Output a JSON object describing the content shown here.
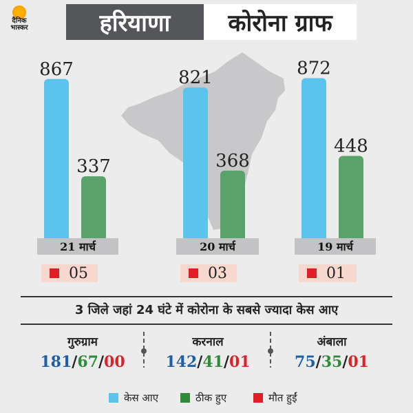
{
  "header": {
    "logo_text_1": "दैनिक",
    "logo_text_2": "भास्कर",
    "title_left": "हरियाणा",
    "title_right": "कोरोना ग्राफ"
  },
  "colors": {
    "cases": "#5bc4ec",
    "recovered": "#5aa26c",
    "deaths": "#e01e25",
    "map": "#c8c8ca"
  },
  "chart_data": {
    "type": "bar",
    "title": "",
    "categories": [
      "21 मार्च",
      "20 मार्च",
      "19 मार्च"
    ],
    "series": [
      {
        "name": "केस आए",
        "values": [
          867,
          821,
          872
        ]
      },
      {
        "name": "ठीक हुए",
        "values": [
          337,
          368,
          448
        ]
      }
    ],
    "deaths": [
      "05",
      "03",
      "01"
    ],
    "ylim": [
      0,
      900
    ]
  },
  "subtitle": "3 जिले जहां 24 घंटे में कोरोना के सबसे ज्यादा केस आए",
  "districts": [
    {
      "name": "गुरुग्राम",
      "cases": "181",
      "recovered": "67",
      "deaths": "00"
    },
    {
      "name": "करनाल",
      "cases": "142",
      "recovered": "41",
      "deaths": "01"
    },
    {
      "name": "अंबाला",
      "cases": "75",
      "recovered": "35",
      "deaths": "01"
    }
  ],
  "legend": {
    "cases": "केस आए",
    "recovered": "ठीक हुए",
    "deaths": "मौत हुईं"
  },
  "separator": "/"
}
